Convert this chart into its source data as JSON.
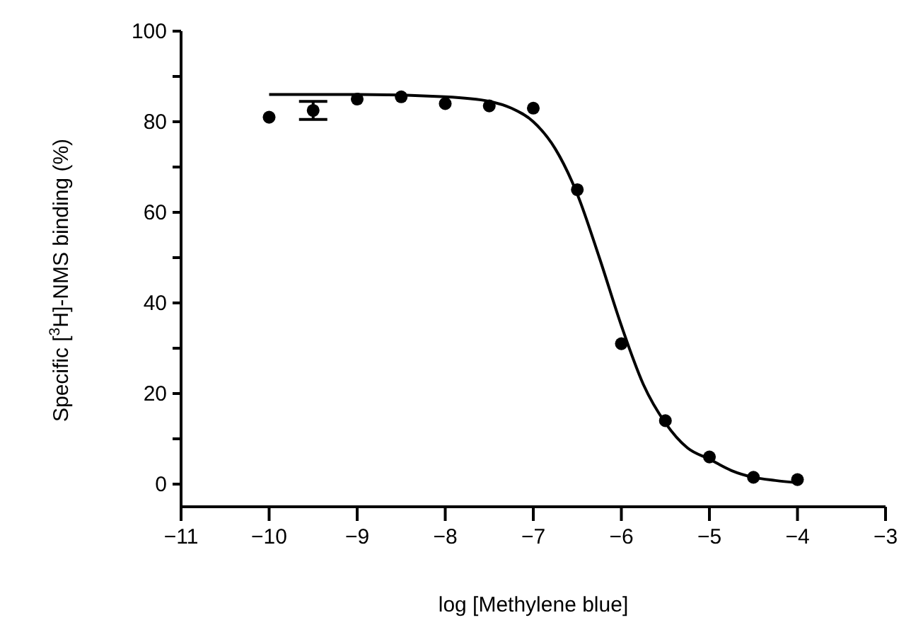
{
  "chart_data": {
    "type": "scatter",
    "xlabel": "log [Methylene blue]",
    "ylabel": "Specific [$^{3}$H]-NMS binding (%)",
    "xlim": [
      -11,
      -3
    ],
    "xticks": [
      {
        "value": -11,
        "label": "−11"
      },
      {
        "value": -10,
        "label": "−10"
      },
      {
        "value": -9,
        "label": "−9"
      },
      {
        "value": -8,
        "label": "−8"
      },
      {
        "value": -7,
        "label": "−7"
      },
      {
        "value": -6,
        "label": "−6"
      },
      {
        "value": -5,
        "label": "−5"
      },
      {
        "value": -4,
        "label": "−4"
      },
      {
        "value": -3,
        "label": "−3"
      }
    ],
    "ylim": [
      -5,
      100
    ],
    "yticks": [
      0,
      {
        "value": 10,
        "label": null
      },
      20,
      {
        "value": 30,
        "label": null
      },
      40,
      {
        "value": 50,
        "label": null
      },
      60,
      {
        "value": 70,
        "label": null
      },
      80,
      {
        "value": 90,
        "label": null
      },
      100
    ],
    "grid": false,
    "legend": false,
    "marker": "circle",
    "series": [
      {
        "color": "#000000",
        "x": [
          -10,
          -9.5,
          -9,
          -8.5,
          -8,
          -7.5,
          -7,
          -6.5,
          -6,
          -5.5,
          -5,
          -4.5,
          -4
        ],
        "values": [
          81,
          82.5,
          85,
          85.5,
          84,
          83.5,
          83,
          65,
          31,
          14,
          6,
          1.5,
          1
        ],
        "errors": [
          null,
          2,
          null,
          null,
          null,
          null,
          null,
          null,
          null,
          null,
          null,
          null,
          null
        ]
      },
      {
        "type": "line",
        "color": "#000000",
        "marker": "none",
        "x": [
          -10,
          -9,
          -8,
          -7.5,
          -7.25,
          -7,
          -6.75,
          -6.5,
          -6.25,
          -6,
          -5.75,
          -5.5,
          -5.25,
          -5,
          -4.75,
          -4.5,
          -4.25,
          -4
        ],
        "values": [
          86,
          86,
          85.5,
          84.5,
          83,
          80,
          74,
          64,
          50,
          35,
          22,
          13.5,
          8,
          5.5,
          3,
          1.5,
          0.8,
          0.3
        ]
      }
    ]
  }
}
